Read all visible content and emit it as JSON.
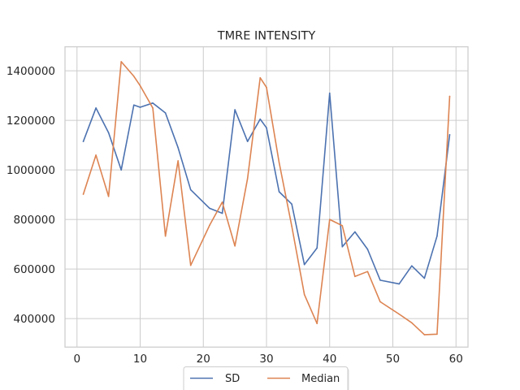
{
  "chart_data": {
    "type": "line",
    "title": "TMRE INTENSITY",
    "xlabel": "",
    "ylabel": "",
    "xlim": [
      -1.9,
      61.9
    ],
    "ylim": [
      285000,
      1497000
    ],
    "xticks": [
      0,
      10,
      20,
      30,
      40,
      50,
      60
    ],
    "xtick_labels": [
      "0",
      "10",
      "20",
      "30",
      "40",
      "50",
      "60"
    ],
    "yticks": [
      400000,
      600000,
      800000,
      1000000,
      1200000,
      1400000
    ],
    "ytick_labels": [
      "400000",
      "600000",
      "800000",
      "1000000",
      "1200000",
      "1400000"
    ],
    "grid": true,
    "legend": {
      "position": "bottom-center",
      "columns": 2
    },
    "series": [
      {
        "name": "SD",
        "color": "#4c72b0",
        "points": [
          [
            1,
            1115000
          ],
          [
            3,
            1250000
          ],
          [
            5,
            1150000
          ],
          [
            7,
            1000000
          ],
          [
            9,
            1262000
          ],
          [
            10,
            1253000
          ],
          [
            12,
            1270000
          ],
          [
            14,
            1230000
          ],
          [
            16,
            1090000
          ],
          [
            18,
            920000
          ],
          [
            21,
            845000
          ],
          [
            23,
            825000
          ],
          [
            25,
            1243000
          ],
          [
            27,
            1115000
          ],
          [
            29,
            1205000
          ],
          [
            30,
            1170000
          ],
          [
            32,
            912000
          ],
          [
            34,
            862000
          ],
          [
            36,
            618000
          ],
          [
            38,
            685000
          ],
          [
            40,
            1310000
          ],
          [
            42,
            690000
          ],
          [
            44,
            750000
          ],
          [
            46,
            680000
          ],
          [
            48,
            555000
          ],
          [
            51,
            540000
          ],
          [
            53,
            613000
          ],
          [
            55,
            563000
          ],
          [
            57,
            733000
          ],
          [
            59,
            1142000
          ]
        ]
      },
      {
        "name": "Median",
        "color": "#dd8452",
        "points": [
          [
            1,
            902000
          ],
          [
            3,
            1060000
          ],
          [
            5,
            893000
          ],
          [
            7,
            1437000
          ],
          [
            9,
            1378000
          ],
          [
            10,
            1340000
          ],
          [
            12,
            1250000
          ],
          [
            14,
            733000
          ],
          [
            16,
            1037000
          ],
          [
            18,
            615000
          ],
          [
            21,
            777000
          ],
          [
            23,
            870000
          ],
          [
            25,
            693000
          ],
          [
            27,
            965000
          ],
          [
            29,
            1372000
          ],
          [
            30,
            1333000
          ],
          [
            32,
            1030000
          ],
          [
            34,
            773000
          ],
          [
            36,
            497000
          ],
          [
            38,
            380000
          ],
          [
            40,
            800000
          ],
          [
            42,
            775000
          ],
          [
            44,
            570000
          ],
          [
            46,
            590000
          ],
          [
            48,
            468000
          ],
          [
            51,
            418000
          ],
          [
            53,
            383000
          ],
          [
            55,
            335000
          ],
          [
            57,
            337000
          ],
          [
            59,
            1297000
          ]
        ]
      }
    ]
  }
}
